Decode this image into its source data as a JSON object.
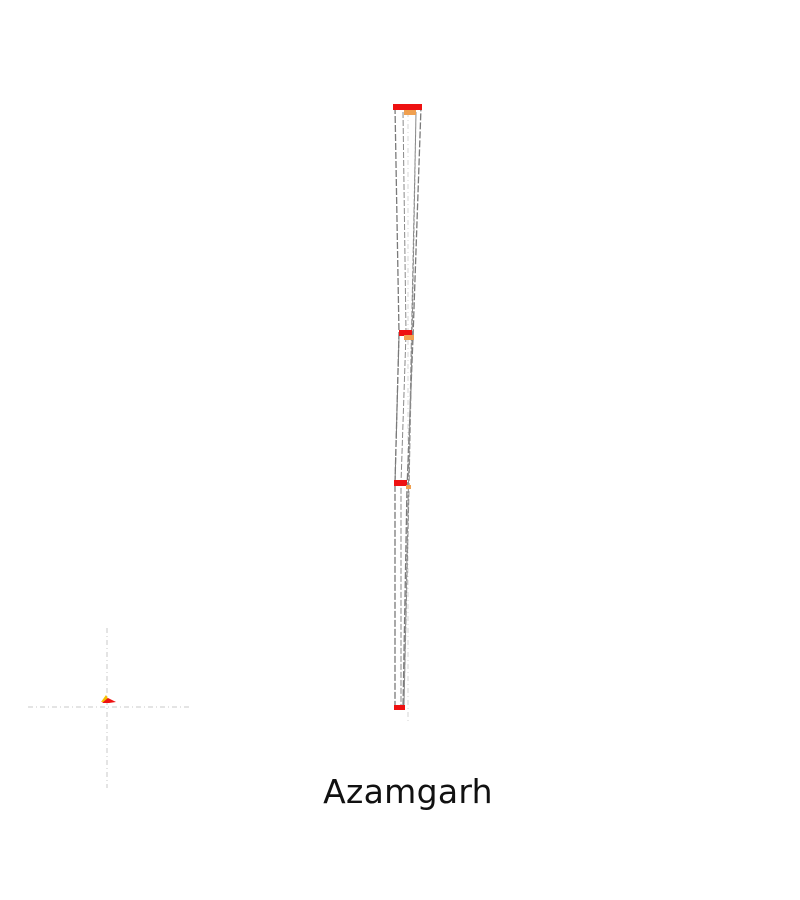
{
  "place_name": "Azamgarh",
  "colors": {
    "background": "#ffffff",
    "route_line": "#7a7a7a",
    "guide_line": "#c8c8c8",
    "station_marker_primary": "#ee1111",
    "station_marker_secondary": "#f0a050",
    "inset_marker_primary": "#ee1111",
    "inset_marker_secondary": "#f5c000",
    "label_text": "#111111"
  },
  "icons": {
    "station_marker": "red-rectangle",
    "platform_marker": "orange-rectangle",
    "inset_marker": "triangle-flag"
  }
}
